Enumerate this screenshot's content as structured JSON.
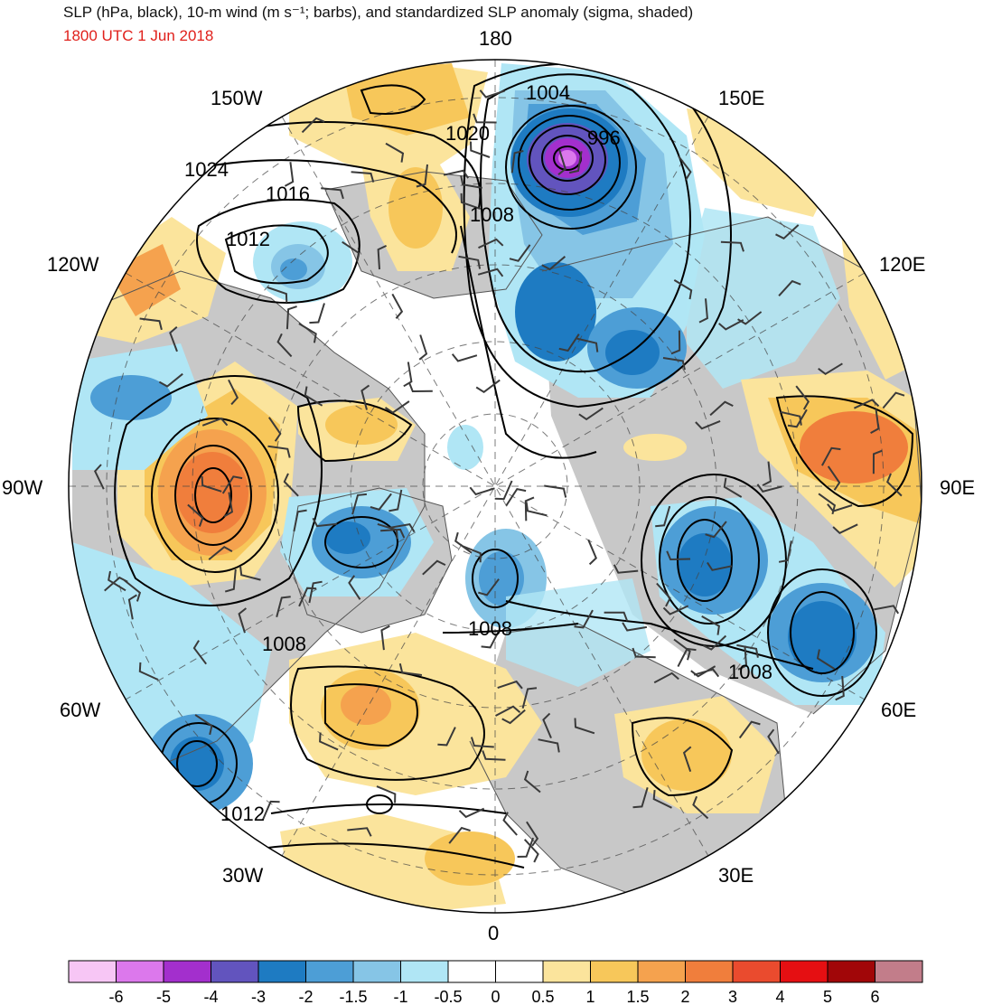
{
  "header": {
    "title": "SLP (hPa, black), 10-m wind (m s⁻¹; barbs), and standardized SLP anomaly (sigma, shaded)",
    "subtitle": "1800 UTC 1 Jun 2018"
  },
  "map": {
    "projection": "north-polar-stereographic",
    "longitude_labels": {
      "top": "180",
      "bottom": "0",
      "left": "90W",
      "right": "90E",
      "upper_left_150": "150W",
      "upper_left_120": "120W",
      "upper_right_150": "150E",
      "upper_right_120": "120E",
      "lower_left_60": "60W",
      "lower_left_30": "30W",
      "lower_right_60": "60E",
      "lower_right_30": "30E"
    },
    "isobar_labels": {
      "l1004": "1004",
      "l996": "996",
      "l1020": "1020",
      "l1024": "1024",
      "l1016": "1016",
      "l1012a": "1012",
      "l1008a": "1008",
      "l1008b": "1008",
      "l1008c": "1008",
      "l1008d": "1008",
      "l1012b": "1012"
    },
    "colors": {
      "land": "#c8c8c8",
      "ocean": "#ffffff",
      "isobar": "#000000",
      "barb": "#3a3a3a"
    }
  },
  "colorbar": {
    "colors": [
      "#f7c6f5",
      "#dc78ec",
      "#a32fcd",
      "#6254be",
      "#1e7bc2",
      "#4d9ed6",
      "#86c5e6",
      "#b0e6f5",
      "#ffffff",
      "#ffffff",
      "#fbe49c",
      "#f7c75a",
      "#f5a24e",
      "#f07e3c",
      "#ea4b2e",
      "#e50f12",
      "#a10608",
      "#c27d8a"
    ],
    "tick_labels": [
      "-6",
      "-5",
      "-4",
      "-3",
      "-2",
      "-1.5",
      "-1",
      "-0.5",
      "0",
      "0.5",
      "1",
      "1.5",
      "2",
      "3",
      "4",
      "5",
      "6"
    ]
  }
}
